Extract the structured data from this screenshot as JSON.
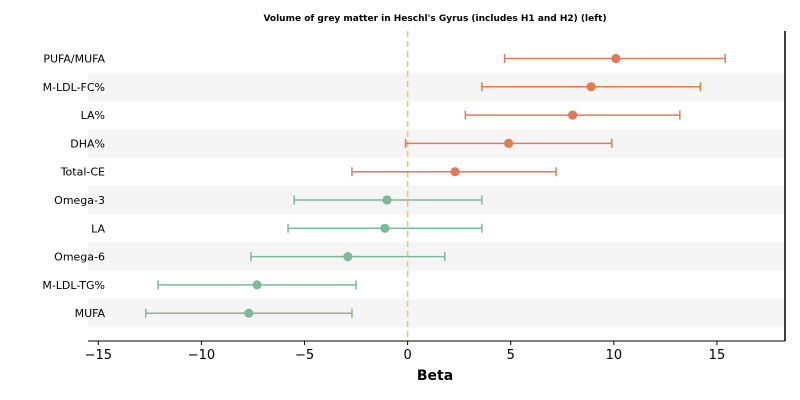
{
  "chart_data": {
    "type": "forest",
    "title": "Volume of grey matter in Heschl's Gyrus (includes H1 and H2) (left)",
    "xlabel": "Beta",
    "ylabel": "",
    "xlim": [
      -15.5,
      18.3
    ],
    "xticks": [
      -15,
      -10,
      -5,
      0,
      5,
      10,
      15
    ],
    "xtick_labels": [
      "−15",
      "−10",
      "−5",
      "0",
      "5",
      "10",
      "15"
    ],
    "reference_line": 0,
    "alternating_row_shading": true,
    "colors": {
      "positive": "#e07b5a",
      "negative": "#7fb89b",
      "reference_line": "#f2c46e",
      "row_shade": "#f5f5f5"
    },
    "categories": [
      "PUFA/MUFA",
      "M-LDL-FC%",
      "LA%",
      "DHA%",
      "Total-CE",
      "Omega-3",
      "LA",
      "Omega-6",
      "M-LDL-TG%",
      "MUFA"
    ],
    "values": [
      10.1,
      8.9,
      8.0,
      4.9,
      2.3,
      -1.0,
      -1.1,
      -2.9,
      -7.3,
      -7.7
    ],
    "ci_lower": [
      4.7,
      3.6,
      2.8,
      -0.1,
      -2.7,
      -5.5,
      -5.8,
      -7.6,
      -12.1,
      -12.7
    ],
    "ci_upper": [
      15.4,
      14.2,
      13.2,
      9.9,
      7.2,
      3.6,
      3.6,
      1.8,
      -2.5,
      -2.7
    ]
  }
}
